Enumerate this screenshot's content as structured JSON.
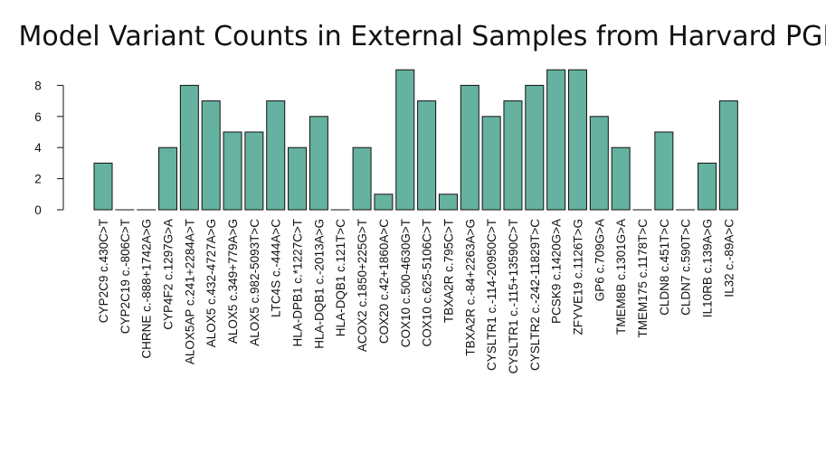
{
  "chart_data": {
    "type": "bar",
    "title": "Model Variant Counts in External Samples from Harvard PGP",
    "xlabel": "",
    "ylabel": "",
    "ylim": [
      0,
      9
    ],
    "yticks": [
      0,
      2,
      4,
      6,
      8
    ],
    "grid": false,
    "bar_color": "#66b2a0",
    "categories": [
      "CYP2C9 c.430C>T",
      "CYP2C19 c.-806C>T",
      "CHRNE c.-888+1742A>G",
      "CYP4F2 c.1297G>A",
      "ALOX5AP c.241+2284A>T",
      "ALOX5 c.432-4727A>G",
      "ALOX5 c.349+779A>G",
      "ALOX5 c.982-5093T>C",
      "LTC4S c.-444A>C",
      "HLA-DPB1 c.*1227C>T",
      "HLA-DQB1 c.-2013A>G",
      "HLA-DQB1 c.121T>C",
      "ACOX2 c.1850+225G>T",
      "COX20 c.42+1860A>C",
      "COX10 c.500-4630G>T",
      "COX10 c.625-5106C>T",
      "TBXA2R c.795C>T",
      "TBXA2R c.-84+2263A>G",
      "CYSLTR1 c.-114-20950C>T",
      "CYSLTR1 c.-115+13590C>T",
      "CYSLTR2 c.-242-11829T>C",
      "PCSK9 c.1420G>A",
      "ZFYVE19 c.1126T>G",
      "GP6 c.709G>A",
      "TMEM8B c.1301G>A",
      "TMEM175 c.1178T>C",
      "CLDN8 c.451T>C",
      "CLDN7 c.590T>C",
      "IL10RB c.139A>G",
      "IL32 c.-89A>C"
    ],
    "values": [
      3,
      0,
      0,
      4,
      8,
      7,
      5,
      5,
      7,
      4,
      6,
      0,
      4,
      1,
      9,
      7,
      1,
      8,
      6,
      7,
      8,
      9,
      9,
      6,
      4,
      0,
      5,
      0,
      3,
      7
    ]
  }
}
